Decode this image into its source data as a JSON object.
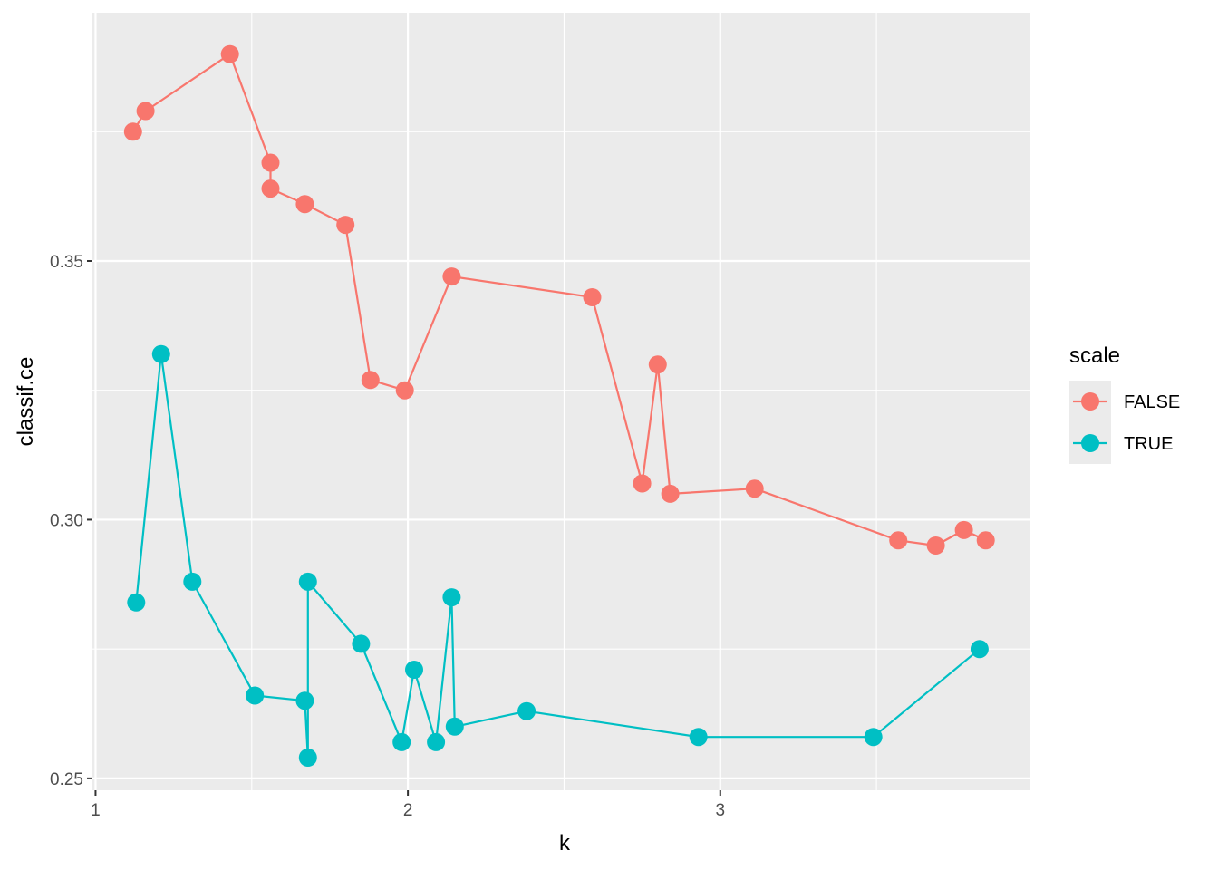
{
  "chart_data": {
    "type": "line",
    "title": "",
    "xlabel": "k",
    "ylabel": "classif.ce",
    "xlim": [
      0.99,
      3.99
    ],
    "ylim": [
      0.2477,
      0.398
    ],
    "x_ticks": [
      1,
      2,
      3
    ],
    "x_tick_labels": [
      "1",
      "2",
      "3"
    ],
    "x_minor": [
      1.5,
      2.5,
      3.5
    ],
    "y_ticks": [
      0.25,
      0.3,
      0.35
    ],
    "y_tick_labels": [
      "0.25",
      "0.30",
      "0.35"
    ],
    "y_minor": [
      0.275,
      0.325,
      0.375
    ],
    "grid": true,
    "legend": {
      "title": "scale",
      "position": "right"
    },
    "series": [
      {
        "name": "FALSE",
        "color": "#F8766D",
        "points": [
          [
            1.12,
            0.375
          ],
          [
            1.16,
            0.379
          ],
          [
            1.43,
            0.39
          ],
          [
            1.56,
            0.369
          ],
          [
            1.56,
            0.364
          ],
          [
            1.67,
            0.361
          ],
          [
            1.8,
            0.357
          ],
          [
            1.88,
            0.327
          ],
          [
            1.99,
            0.325
          ],
          [
            2.14,
            0.347
          ],
          [
            2.59,
            0.343
          ],
          [
            2.75,
            0.307
          ],
          [
            2.8,
            0.33
          ],
          [
            2.84,
            0.305
          ],
          [
            3.11,
            0.306
          ],
          [
            3.57,
            0.296
          ],
          [
            3.69,
            0.295
          ],
          [
            3.78,
            0.298
          ],
          [
            3.85,
            0.296
          ]
        ]
      },
      {
        "name": "TRUE",
        "color": "#00BFC4",
        "points": [
          [
            1.13,
            0.284
          ],
          [
            1.21,
            0.332
          ],
          [
            1.31,
            0.288
          ],
          [
            1.51,
            0.266
          ],
          [
            1.67,
            0.265
          ],
          [
            1.68,
            0.254
          ],
          [
            1.68,
            0.288
          ],
          [
            1.85,
            0.276
          ],
          [
            1.98,
            0.257
          ],
          [
            2.02,
            0.271
          ],
          [
            2.09,
            0.257
          ],
          [
            2.14,
            0.285
          ],
          [
            2.15,
            0.26
          ],
          [
            2.38,
            0.263
          ],
          [
            2.93,
            0.258
          ],
          [
            3.49,
            0.258
          ],
          [
            3.83,
            0.275
          ]
        ]
      }
    ]
  }
}
